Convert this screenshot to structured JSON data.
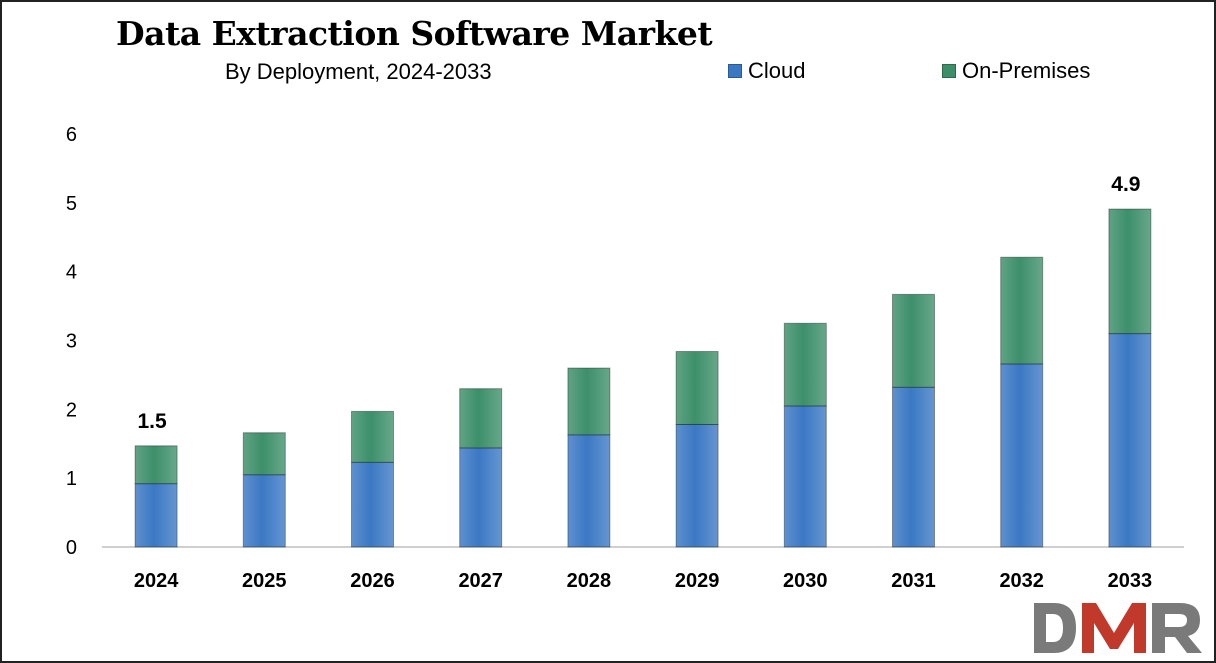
{
  "title": "Data Extraction Software Market",
  "subtitle": "By Deployment, 2024-2033",
  "legend": [
    {
      "label": "Cloud",
      "color": "#3b78c4"
    },
    {
      "label": "On-Premises",
      "color": "#3d8f6a"
    }
  ],
  "logo": {
    "text": "DMR",
    "colors": [
      "#7a7a7a",
      "#c0392b"
    ]
  },
  "chart_data": {
    "type": "bar",
    "stacked": true,
    "categories": [
      "2024",
      "2025",
      "2026",
      "2027",
      "2028",
      "2029",
      "2030",
      "2031",
      "2032",
      "2033"
    ],
    "series": [
      {
        "name": "Cloud",
        "color": "#3b78c4",
        "values": [
          0.92,
          1.05,
          1.23,
          1.44,
          1.63,
          1.78,
          2.05,
          2.32,
          2.66,
          3.1
        ]
      },
      {
        "name": "On-Premises",
        "color": "#3d8f6a",
        "values": [
          0.55,
          0.61,
          0.74,
          0.86,
          0.97,
          1.06,
          1.2,
          1.35,
          1.55,
          1.81
        ]
      }
    ],
    "data_labels": [
      {
        "category": "2024",
        "text": "1.5"
      },
      {
        "category": "2033",
        "text": "4.9"
      }
    ],
    "yticks": [
      "0",
      "1",
      "2",
      "3",
      "4",
      "5",
      "6"
    ],
    "ylim": [
      0,
      6
    ],
    "grid": false,
    "legend_position": "top-right"
  }
}
